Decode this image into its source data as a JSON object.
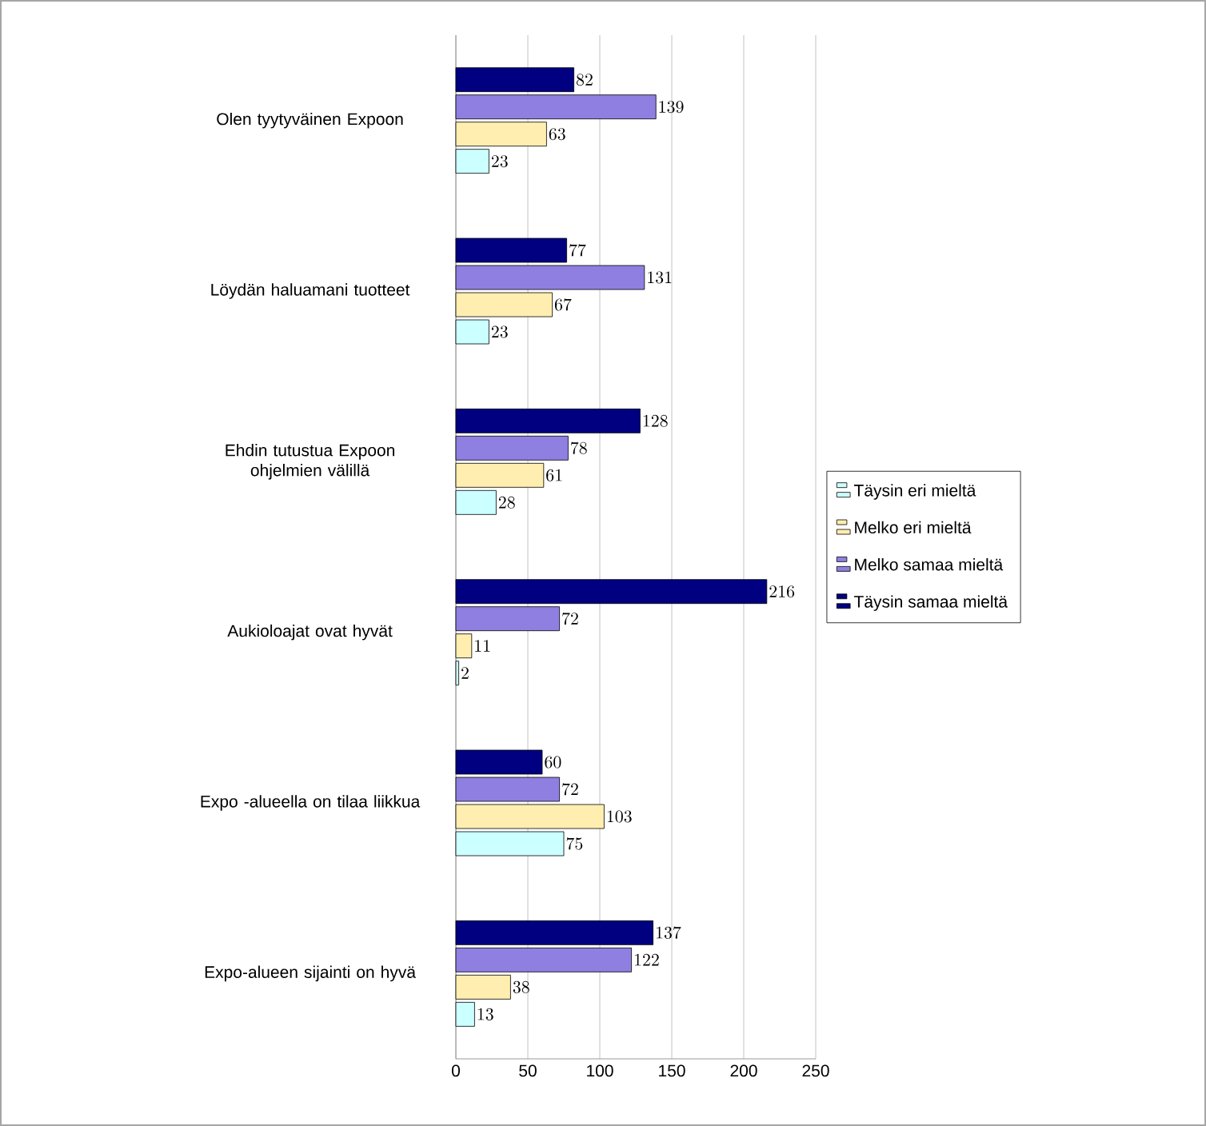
{
  "chart_data": {
    "type": "bar",
    "orientation": "horizontal",
    "categories": [
      "Olen tyytyväinen Expoon",
      "Löydän haluamani tuotteet",
      "Ehdin tutustua Expoon ohjelmien välillä",
      "Aukioloajat ovat hyvät",
      "Expo -alueella on tilaa liikkua",
      "Expo-alueen sijainti on hyvä"
    ],
    "series": [
      {
        "name": "Täysin eri mieltä",
        "color": "#ccffff",
        "values": [
          23,
          23,
          28,
          2,
          75,
          13
        ]
      },
      {
        "name": "Melko eri mieltä",
        "color": "#ffeeb0",
        "values": [
          63,
          67,
          61,
          11,
          103,
          38
        ]
      },
      {
        "name": "Melko samaa mieltä",
        "color": "#8f7fe0",
        "values": [
          139,
          131,
          78,
          72,
          72,
          122
        ]
      },
      {
        "name": "Täysin samaa mieltä",
        "color": "#000080",
        "values": [
          82,
          77,
          128,
          216,
          60,
          137
        ]
      }
    ],
    "xlim": [
      0,
      250
    ],
    "xticks": [
      0,
      50,
      100,
      150,
      200,
      250
    ],
    "grid": "x",
    "legend": "right",
    "data_labels": true
  }
}
